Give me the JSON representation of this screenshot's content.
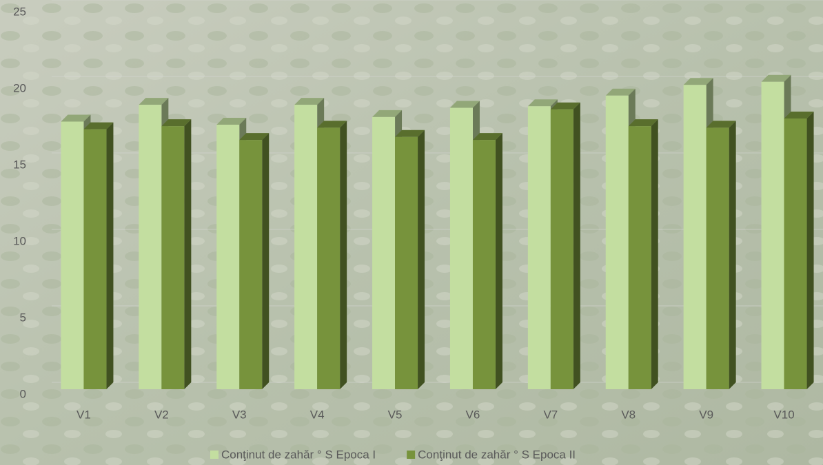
{
  "chart_data": {
    "type": "bar3d",
    "categories": [
      "V1",
      "V2",
      "V3",
      "V4",
      "V5",
      "V6",
      "V7",
      "V8",
      "V9",
      "V10"
    ],
    "series": [
      {
        "name": "Conţinut de zahăr ° S Epoca I",
        "color": "#c3dea0",
        "values": [
          17.5,
          18.6,
          17.3,
          18.6,
          17.8,
          18.4,
          18.5,
          19.2,
          19.9,
          20.1
        ]
      },
      {
        "name": "Conţinut de zahăr ° S Epoca II",
        "color": "#77933c",
        "values": [
          17.0,
          17.2,
          16.3,
          17.1,
          16.5,
          16.3,
          18.3,
          17.2,
          17.1,
          17.7
        ]
      }
    ],
    "ylim": [
      0,
      25
    ],
    "yticks": [
      0,
      5,
      10,
      15,
      20,
      25
    ],
    "grid": true,
    "legend": "bottom"
  }
}
